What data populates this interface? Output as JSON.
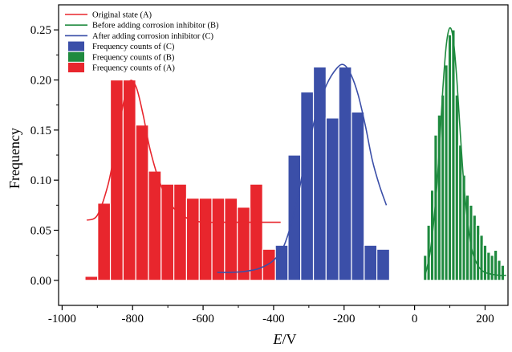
{
  "chart_data": {
    "type": "bar",
    "xlabel_italic": "E",
    "xlabel_unit": "/V",
    "ylabel": "Frequency",
    "xlim": [
      -1010,
      265
    ],
    "ylim": [
      -0.025,
      0.275
    ],
    "x_ticks": [
      -1000,
      -800,
      -600,
      -400,
      -200,
      0,
      200
    ],
    "x_tick_labels": [
      "-1000",
      "-800",
      "-600",
      "-400",
      "-200",
      "0",
      "200"
    ],
    "y_ticks": [
      0.0,
      0.05,
      0.1,
      0.15,
      0.2,
      0.25
    ],
    "y_tick_labels": [
      "0.00",
      "0.05",
      "0.10",
      "0.15",
      "0.20",
      "0.25"
    ],
    "grid": false,
    "legend_position": "top-left",
    "series": [
      {
        "name": "Frequency counts of (C)",
        "kind": "bar",
        "color": "#3b4fa8",
        "bin_width": 36,
        "x": [
          -377,
          -341,
          -305,
          -269,
          -233,
          -197,
          -161,
          -125,
          -89
        ],
        "values": [
          0.035,
          0.125,
          0.188,
          0.213,
          0.162,
          0.213,
          0.168,
          0.035,
          0.031
        ]
      },
      {
        "name": "Frequency counts of (B)",
        "kind": "bar",
        "color": "#1f8a3f",
        "bin_width": 10,
        "x": [
          30,
          40,
          50,
          60,
          70,
          80,
          90,
          100,
          110,
          120,
          130,
          140,
          150,
          160,
          170,
          180,
          190,
          200,
          210,
          220,
          230,
          240,
          250
        ],
        "values": [
          0.025,
          0.055,
          0.09,
          0.145,
          0.165,
          0.185,
          0.215,
          0.245,
          0.25,
          0.185,
          0.135,
          0.105,
          0.085,
          0.075,
          0.065,
          0.055,
          0.045,
          0.035,
          0.028,
          0.025,
          0.03,
          0.02,
          0.015
        ]
      },
      {
        "name": "Frequency counts of (A)",
        "kind": "bar",
        "color": "#e8262d",
        "bin_width": 36,
        "x": [
          -917,
          -881,
          -845,
          -809,
          -773,
          -737,
          -701,
          -665,
          -629,
          -593,
          -557,
          -521,
          -485,
          -449,
          -413,
          -377
        ],
        "values": [
          0.004,
          0.077,
          0.2,
          0.2,
          0.155,
          0.109,
          0.096,
          0.096,
          0.082,
          0.082,
          0.082,
          0.082,
          0.073,
          0.096,
          0.031,
          0.0
        ]
      },
      {
        "name": "Original state (A)",
        "kind": "line",
        "color": "#e8262d",
        "x": [
          -930,
          -900,
          -870,
          -850,
          -830,
          -810,
          -790,
          -770,
          -750,
          -720,
          -690,
          -660,
          -630,
          -600,
          -560,
          -520,
          -480,
          -440,
          -380
        ],
        "values": [
          0.06,
          0.065,
          0.095,
          0.13,
          0.17,
          0.198,
          0.193,
          0.165,
          0.13,
          0.095,
          0.075,
          0.065,
          0.06,
          0.058,
          0.058,
          0.058,
          0.058,
          0.058,
          0.058
        ]
      },
      {
        "name": "Before adding corrosion inhibitor (B)",
        "kind": "line",
        "color": "#1f8a3f",
        "x": [
          30,
          45,
          60,
          70,
          80,
          90,
          100,
          110,
          120,
          130,
          140,
          150,
          160,
          170,
          185,
          200,
          220,
          240,
          260
        ],
        "values": [
          0.005,
          0.03,
          0.08,
          0.13,
          0.19,
          0.235,
          0.252,
          0.24,
          0.2,
          0.145,
          0.095,
          0.06,
          0.035,
          0.022,
          0.012,
          0.008,
          0.006,
          0.005,
          0.005
        ]
      },
      {
        "name": "After adding corrosion inhibitor (C)",
        "kind": "line",
        "color": "#3b4fa8",
        "x": [
          -560,
          -520,
          -480,
          -440,
          -400,
          -370,
          -340,
          -310,
          -280,
          -250,
          -220,
          -200,
          -180,
          -160,
          -140,
          -120,
          -100,
          -80
        ],
        "values": [
          0.008,
          0.008,
          0.009,
          0.012,
          0.02,
          0.035,
          0.07,
          0.12,
          0.165,
          0.195,
          0.212,
          0.215,
          0.205,
          0.185,
          0.155,
          0.12,
          0.095,
          0.075
        ]
      }
    ],
    "legend_entries": [
      {
        "label": "Original state (A)",
        "kind": "line",
        "color": "#e8262d"
      },
      {
        "label": "Before adding corrosion inhibitor (B)",
        "kind": "line",
        "color": "#1f8a3f"
      },
      {
        "label": "After adding corrosion inhibitor (C)",
        "kind": "line",
        "color": "#3b4fa8"
      },
      {
        "label": "Frequency counts of (C)",
        "kind": "bar",
        "color": "#3b4fa8"
      },
      {
        "label": "Frequency counts of (B)",
        "kind": "bar",
        "color": "#1f8a3f"
      },
      {
        "label": "Frequency counts of (A)",
        "kind": "bar",
        "color": "#e8262d"
      }
    ]
  }
}
